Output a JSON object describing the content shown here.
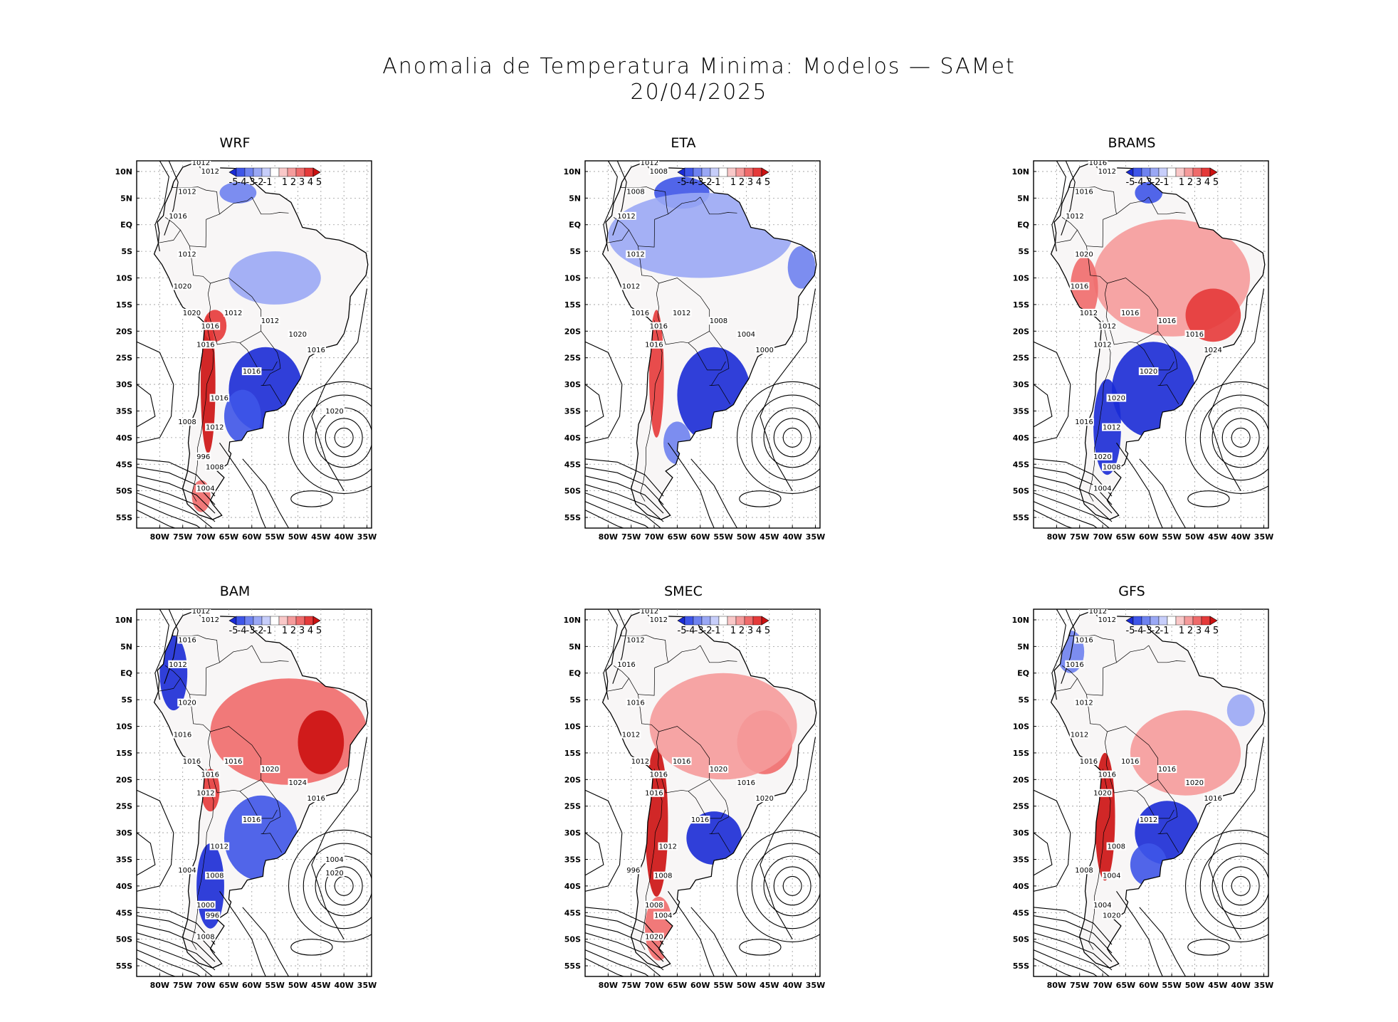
{
  "figure": {
    "title_line1": "Anomalia de Temperatura Minima: Modelos — SAMet",
    "title_line2": "20/04/2025"
  },
  "map_extent": {
    "lon": [
      -85,
      -34
    ],
    "lat": [
      -57,
      12
    ]
  },
  "lat_ticks": [
    "10N",
    "5N",
    "EQ",
    "5S",
    "10S",
    "15S",
    "20S",
    "25S",
    "30S",
    "35S",
    "40S",
    "45S",
    "50S",
    "55S"
  ],
  "lon_ticks": [
    "80W",
    "75W",
    "70W",
    "65W",
    "60W",
    "55W",
    "50W",
    "45W",
    "40W",
    "35W"
  ],
  "colorbar": {
    "labels": [
      "-5",
      "-4",
      "-3",
      "-2",
      "-1",
      "1",
      "2",
      "3",
      "4",
      "5"
    ],
    "colors": [
      "#1a2bd6",
      "#3e55e8",
      "#6e82f0",
      "#9aa8f5",
      "#c7cefa",
      "#ffffff",
      "#f9c8c8",
      "#f59b9b",
      "#ef6b6b",
      "#e53a3a",
      "#cc1111"
    ]
  },
  "colors": {
    "cold": "#2a3fe0",
    "warm": "#e02a2a"
  },
  "panels": [
    {
      "name": "WRF",
      "isobar_labels": [
        "1012",
        "1012",
        "1012",
        "1016",
        "1012",
        "1020",
        "1020",
        "1016",
        "1016",
        "1012",
        "1012",
        "1020",
        "1016",
        "1016",
        "1016",
        "1012",
        "1008",
        "996",
        "1008",
        "1004",
        "1020"
      ],
      "anomaly_regions": [
        {
          "kind": "cold",
          "value": -5,
          "lon": -57,
          "lat": -31,
          "rlon": 8,
          "rlat": 8
        },
        {
          "kind": "cold",
          "value": -4,
          "lon": -62,
          "lat": -36,
          "rlon": 4,
          "rlat": 5
        },
        {
          "kind": "warm",
          "value": 5,
          "lon": -69.5,
          "lat": -30,
          "rlon": 1.6,
          "rlat": 13
        },
        {
          "kind": "warm",
          "value": 4,
          "lon": -68,
          "lat": -19,
          "rlon": 2.5,
          "rlat": 3
        },
        {
          "kind": "cold",
          "value": -2,
          "lon": -55,
          "lat": -10,
          "rlon": 10,
          "rlat": 5
        },
        {
          "kind": "cold",
          "value": -3,
          "lon": -63,
          "lat": 6,
          "rlon": 4,
          "rlat": 2
        },
        {
          "kind": "warm",
          "value": 3,
          "lon": -71,
          "lat": -51,
          "rlon": 2,
          "rlat": 3
        }
      ]
    },
    {
      "name": "ETA",
      "isobar_labels": [
        "1012",
        "1008",
        "1008",
        "1012",
        "1012",
        "1012",
        "1016",
        "1016",
        "1016",
        "1012",
        "1008",
        "1004",
        "1000"
      ],
      "anomaly_regions": [
        {
          "kind": "cold",
          "value": -5,
          "lon": -57,
          "lat": -32,
          "rlon": 8,
          "rlat": 9
        },
        {
          "kind": "cold",
          "value": -4,
          "lon": -64,
          "lat": 6,
          "rlon": 6,
          "rlat": 3
        },
        {
          "kind": "cold",
          "value": -2,
          "lon": -60,
          "lat": -2,
          "rlon": 20,
          "rlat": 8
        },
        {
          "kind": "cold",
          "value": -3,
          "lon": -38,
          "lat": -8,
          "rlon": 3,
          "rlat": 4
        },
        {
          "kind": "warm",
          "value": 4,
          "lon": -69.5,
          "lat": -28,
          "rlon": 1.6,
          "rlat": 12
        },
        {
          "kind": "cold",
          "value": -3,
          "lon": -65,
          "lat": -41,
          "rlon": 3,
          "rlat": 4
        }
      ]
    },
    {
      "name": "BRAMS",
      "isobar_labels": [
        "1016",
        "1012",
        "1016",
        "1012",
        "1020",
        "1016",
        "1012",
        "1012",
        "1012",
        "1016",
        "1016",
        "1016",
        "1024",
        "1020",
        "1020",
        "1012",
        "1016",
        "1020",
        "1008",
        "1004"
      ],
      "anomaly_regions": [
        {
          "kind": "warm",
          "value": 2,
          "lon": -55,
          "lat": -10,
          "rlon": 17,
          "rlat": 11
        },
        {
          "kind": "warm",
          "value": 4,
          "lon": -46,
          "lat": -17,
          "rlon": 6,
          "rlat": 5
        },
        {
          "kind": "cold",
          "value": -5,
          "lon": -59,
          "lat": -31,
          "rlon": 9,
          "rlat": 9
        },
        {
          "kind": "cold",
          "value": -5,
          "lon": -69,
          "lat": -38,
          "rlon": 3,
          "rlat": 9
        },
        {
          "kind": "cold",
          "value": -4,
          "lon": -60,
          "lat": 6,
          "rlon": 3,
          "rlat": 2
        },
        {
          "kind": "warm",
          "value": 3,
          "lon": -74,
          "lat": -12,
          "rlon": 3,
          "rlat": 6
        }
      ]
    },
    {
      "name": "BAM",
      "isobar_labels": [
        "1012",
        "1012",
        "1016",
        "1012",
        "1020",
        "1016",
        "1016",
        "1016",
        "1012",
        "1016",
        "1020",
        "1024",
        "1016",
        "1016",
        "1012",
        "1008",
        "1004",
        "1000",
        "996",
        "1008",
        "1004",
        "1020"
      ],
      "anomaly_regions": [
        {
          "kind": "warm",
          "value": 3,
          "lon": -52,
          "lat": -11,
          "rlon": 17,
          "rlat": 10
        },
        {
          "kind": "warm",
          "value": 5,
          "lon": -45,
          "lat": -13,
          "rlon": 5,
          "rlat": 6
        },
        {
          "kind": "cold",
          "value": -4,
          "lon": -58,
          "lat": -31,
          "rlon": 8,
          "rlat": 8
        },
        {
          "kind": "cold",
          "value": -5,
          "lon": -69,
          "lat": -40,
          "rlon": 3,
          "rlat": 8
        },
        {
          "kind": "cold",
          "value": -5,
          "lon": -77,
          "lat": 0,
          "rlon": 3,
          "rlat": 7
        },
        {
          "kind": "warm",
          "value": 4,
          "lon": -69,
          "lat": -22,
          "rlon": 2,
          "rlat": 4
        }
      ]
    },
    {
      "name": "SMEC",
      "isobar_labels": [
        "1012",
        "1012",
        "1012",
        "1016",
        "1016",
        "1012",
        "1012",
        "1016",
        "1016",
        "1016",
        "1020",
        "1016",
        "1020",
        "1016",
        "1012",
        "1008",
        "996",
        "1008",
        "1004",
        "1020"
      ],
      "anomaly_regions": [
        {
          "kind": "warm",
          "value": 5,
          "lon": -69.5,
          "lat": -28,
          "rlon": 2.5,
          "rlat": 14
        },
        {
          "kind": "warm",
          "value": 3,
          "lon": -46,
          "lat": -13,
          "rlon": 6,
          "rlat": 6
        },
        {
          "kind": "warm",
          "value": 2,
          "lon": -55,
          "lat": -10,
          "rlon": 16,
          "rlat": 10
        },
        {
          "kind": "cold",
          "value": -5,
          "lon": -57,
          "lat": -31,
          "rlon": 6,
          "rlat": 5
        },
        {
          "kind": "warm",
          "value": 3,
          "lon": -69,
          "lat": -48,
          "rlon": 3,
          "rlat": 6
        }
      ]
    },
    {
      "name": "GFS",
      "isobar_labels": [
        "1012",
        "1012",
        "1016",
        "1016",
        "1012",
        "1012",
        "1016",
        "1016",
        "1020",
        "1016",
        "1016",
        "1020",
        "1016",
        "1012",
        "1008",
        "1004",
        "1008",
        "1004",
        "1020"
      ],
      "anomaly_regions": [
        {
          "kind": "warm",
          "value": 5,
          "lon": -69.5,
          "lat": -27,
          "rlon": 2.2,
          "rlat": 12
        },
        {
          "kind": "cold",
          "value": -5,
          "lon": -56,
          "lat": -30,
          "rlon": 7,
          "rlat": 6
        },
        {
          "kind": "cold",
          "value": -4,
          "lon": -60,
          "lat": -36,
          "rlon": 4,
          "rlat": 4
        },
        {
          "kind": "warm",
          "value": 2,
          "lon": -52,
          "lat": -15,
          "rlon": 12,
          "rlat": 8
        },
        {
          "kind": "cold",
          "value": -3,
          "lon": -77,
          "lat": 4,
          "rlon": 3,
          "rlat": 4
        },
        {
          "kind": "cold",
          "value": -2,
          "lon": -40,
          "lat": -7,
          "rlon": 3,
          "rlat": 3
        }
      ]
    }
  ]
}
